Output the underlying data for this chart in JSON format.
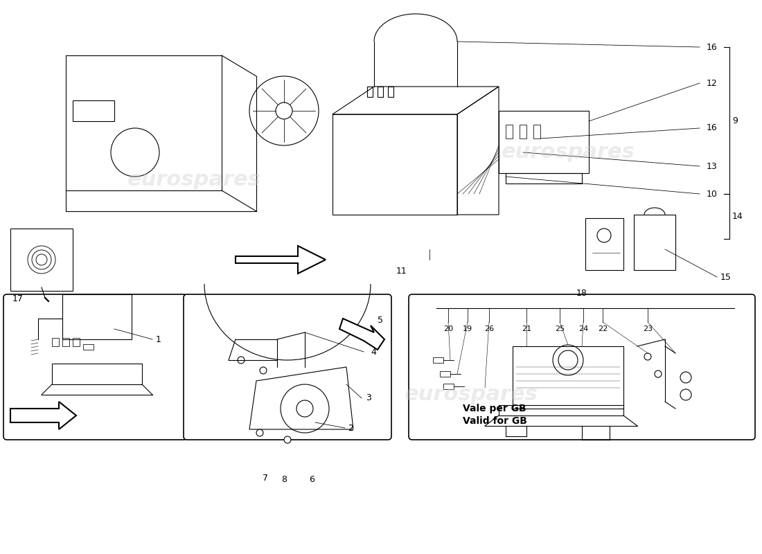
{
  "bg_color": "#ffffff",
  "line_color": "#000000",
  "watermark_color": "#c8c8c8",
  "watermark_text": "eurospares",
  "label_fontsize": 9,
  "small_fontsize": 8
}
